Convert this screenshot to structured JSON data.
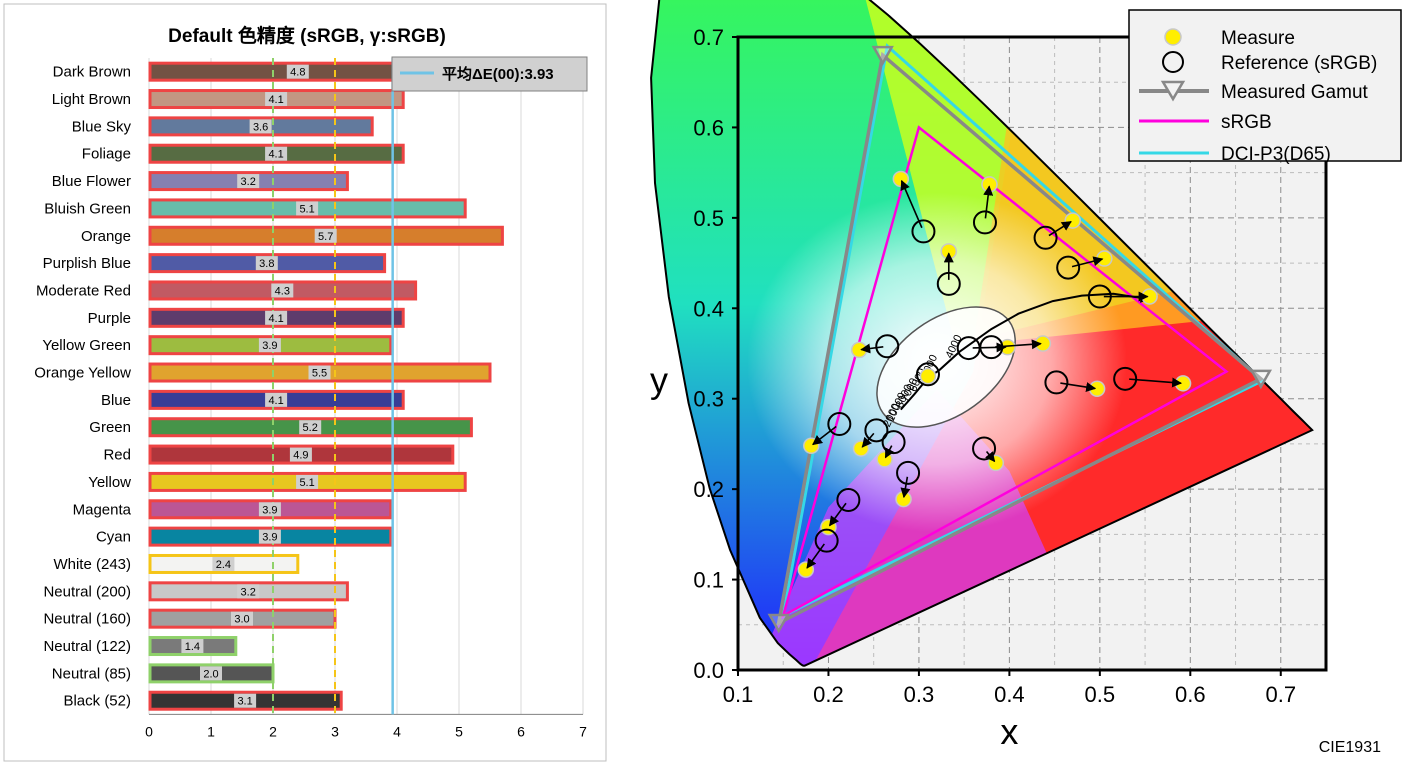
{
  "chart_data": [
    {
      "type": "bar",
      "title": "Default 色精度 (sRGB, γ:sRGB)",
      "orientation": "horizontal",
      "categories": [
        "Dark Brown",
        "Light Brown",
        "Blue Sky",
        "Foliage",
        "Blue Flower",
        "Bluish Green",
        "Orange",
        "Purplish Blue",
        "Moderate Red",
        "Purple",
        "Yellow Green",
        "Orange Yellow",
        "Blue",
        "Green",
        "Red",
        "Yellow",
        "Magenta",
        "Cyan",
        "White (243)",
        "Neutral (200)",
        "Neutral (160)",
        "Neutral (122)",
        "Neutral (85)",
        "Black (52)"
      ],
      "values": [
        4.8,
        4.1,
        3.6,
        4.1,
        3.2,
        5.1,
        5.7,
        3.8,
        4.3,
        4.1,
        3.9,
        5.5,
        4.1,
        5.2,
        4.9,
        5.1,
        3.9,
        3.9,
        2.4,
        3.2,
        3.0,
        1.4,
        2.0,
        3.1
      ],
      "value_labels": [
        "4.8",
        "4.1",
        "3.6",
        "4.1",
        "3.2",
        "5.1",
        "5.7",
        "3.8",
        "4.3",
        "4.1",
        "3.9",
        "5.5",
        "4.1",
        "5.2",
        "4.9",
        "5.1",
        "3.9",
        "3.9",
        "2.4",
        "3.2",
        "3.0",
        "1.4",
        "2.0",
        "3.1"
      ],
      "bar_colors": [
        "#735244",
        "#c29682",
        "#627a9d",
        "#576c43",
        "#8580b1",
        "#67bdaa",
        "#d67e2c",
        "#505ba6",
        "#c15a63",
        "#5e3c6c",
        "#9dbc40",
        "#e0a32e",
        "#383d96",
        "#469449",
        "#af363c",
        "#e7c71f",
        "#bb5695",
        "#0885a1",
        "#f3f3f2",
        "#c8c8c8",
        "#a0a0a0",
        "#7a7a7a",
        "#555555",
        "#343434"
      ],
      "outline_colors": [
        "#ee4444",
        "#ee4444",
        "#ee4444",
        "#ee4444",
        "#ee4444",
        "#ee4444",
        "#ee4444",
        "#ee4444",
        "#ee4444",
        "#ee4444",
        "#ee4444",
        "#ee4444",
        "#ee4444",
        "#ee4444",
        "#ee4444",
        "#ee4444",
        "#ee4444",
        "#ee4444",
        "#f5c518",
        "#ee4444",
        "#ee4444",
        "#8fd16a",
        "#8fd16a",
        "#ee4444"
      ],
      "xlim": [
        0,
        7
      ],
      "xticks": [
        "0",
        "1",
        "2",
        "3",
        "4",
        "5",
        "6",
        "7"
      ],
      "reference_lines": [
        {
          "value": 2,
          "color": "#8fd16a",
          "style": "dashed"
        },
        {
          "value": 3,
          "color": "#f5c518",
          "style": "dashed"
        },
        {
          "value": 3.93,
          "color": "#6fc3e6",
          "style": "solid"
        }
      ],
      "legend": {
        "label": "平均ΔE(00):3.93",
        "position": "top-right",
        "line_color": "#6fc3e6"
      },
      "colors": {
        "bar_outline": "#ee4444",
        "grid": "#d9d9d9",
        "legend_bg": "#d0d0d0"
      }
    },
    {
      "type": "scatter",
      "subtype": "cie1931-chromaticity",
      "xlabel": "x",
      "ylabel": "y",
      "xlim": [
        0.1,
        0.75
      ],
      "ylim": [
        0.0,
        0.7
      ],
      "xticks": [
        "0.1",
        "0.2",
        "0.3",
        "0.4",
        "0.5",
        "0.6",
        "0.7"
      ],
      "yticks": [
        "0.0",
        "0.1",
        "0.2",
        "0.3",
        "0.4",
        "0.5",
        "0.6",
        "0.7"
      ],
      "corner_label": "CIE1931",
      "legend": [
        {
          "label": "Measure",
          "symbol": "yellow-dot"
        },
        {
          "label": "Reference (sRGB)",
          "symbol": "open-circle"
        },
        {
          "label": "Measured Gamut",
          "symbol": "gray-triangle-line"
        },
        {
          "label": "sRGB",
          "symbol": "magenta-line"
        },
        {
          "label": "DCI-P3(D65)",
          "symbol": "cyan-line"
        }
      ],
      "gamuts": {
        "measured": [
          [
            0.678,
            0.322
          ],
          [
            0.26,
            0.68
          ],
          [
            0.145,
            0.052
          ]
        ],
        "srgb": [
          [
            0.64,
            0.33
          ],
          [
            0.3,
            0.6
          ],
          [
            0.15,
            0.06
          ]
        ],
        "dci_p3": [
          [
            0.68,
            0.32
          ],
          [
            0.265,
            0.69
          ],
          [
            0.15,
            0.06
          ]
        ]
      },
      "pairs": [
        {
          "ref": [
            0.305,
            0.485
          ],
          "meas": [
            0.28,
            0.543
          ]
        },
        {
          "ref": [
            0.373,
            0.495
          ],
          "meas": [
            0.378,
            0.537
          ]
        },
        {
          "ref": [
            0.44,
            0.478
          ],
          "meas": [
            0.47,
            0.497
          ]
        },
        {
          "ref": [
            0.465,
            0.445
          ],
          "meas": [
            0.505,
            0.455
          ]
        },
        {
          "ref": [
            0.5,
            0.413
          ],
          "meas": [
            0.555,
            0.413
          ]
        },
        {
          "ref": [
            0.333,
            0.427
          ],
          "meas": [
            0.333,
            0.463
          ]
        },
        {
          "ref": [
            0.265,
            0.358
          ],
          "meas": [
            0.234,
            0.354
          ]
        },
        {
          "ref": [
            0.355,
            0.356
          ],
          "meas": [
            0.398,
            0.357
          ]
        },
        {
          "ref": [
            0.38,
            0.357
          ],
          "meas": [
            0.437,
            0.361
          ]
        },
        {
          "ref": [
            0.31,
            0.327
          ],
          "meas": [
            0.31,
            0.325
          ]
        },
        {
          "ref": [
            0.452,
            0.318
          ],
          "meas": [
            0.497,
            0.311
          ]
        },
        {
          "ref": [
            0.528,
            0.322
          ],
          "meas": [
            0.592,
            0.317
          ]
        },
        {
          "ref": [
            0.212,
            0.272
          ],
          "meas": [
            0.181,
            0.248
          ]
        },
        {
          "ref": [
            0.253,
            0.265
          ],
          "meas": [
            0.236,
            0.245
          ]
        },
        {
          "ref": [
            0.272,
            0.252
          ],
          "meas": [
            0.262,
            0.233
          ]
        },
        {
          "ref": [
            0.372,
            0.245
          ],
          "meas": [
            0.385,
            0.229
          ]
        },
        {
          "ref": [
            0.288,
            0.218
          ],
          "meas": [
            0.283,
            0.189
          ]
        },
        {
          "ref": [
            0.222,
            0.188
          ],
          "meas": [
            0.2,
            0.158
          ]
        },
        {
          "ref": [
            0.198,
            0.143
          ],
          "meas": [
            0.175,
            0.111
          ]
        }
      ],
      "planckian": {
        "points": [
          [
            0.28,
            0.288
          ],
          [
            0.295,
            0.305
          ],
          [
            0.31,
            0.323
          ],
          [
            0.323,
            0.332
          ],
          [
            0.345,
            0.352
          ],
          [
            0.38,
            0.377
          ],
          [
            0.41,
            0.394
          ],
          [
            0.448,
            0.408
          ],
          [
            0.48,
            0.414
          ],
          [
            0.515,
            0.416
          ],
          [
            0.555,
            0.41
          ]
        ],
        "cct_labels": [
          "2000",
          "10000",
          "8000",
          "7000",
          "6000",
          "5000",
          "4000"
        ]
      },
      "colors": {
        "measure": "#ffee00",
        "reference": "#000000",
        "measured_gamut": "#888888",
        "srgb": "#ff00dd",
        "dci_p3": "#35d8e6"
      }
    }
  ]
}
